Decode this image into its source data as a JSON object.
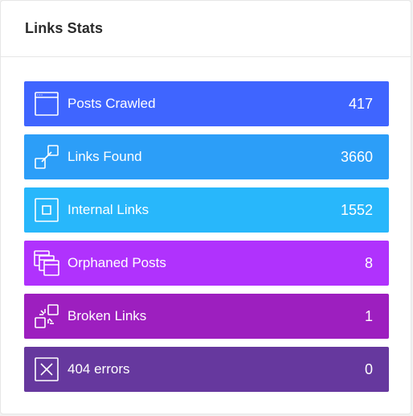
{
  "card": {
    "title": "Links Stats"
  },
  "stats": [
    {
      "label": "Posts Crawled",
      "value": "417",
      "icon": "browser-window-icon",
      "color": "#3f65ff"
    },
    {
      "label": "Links Found",
      "value": "3660",
      "icon": "link-chain-icon",
      "color": "#2c9ef8"
    },
    {
      "label": "Internal Links",
      "value": "1552",
      "icon": "square-in-square-icon",
      "color": "#28b7fb"
    },
    {
      "label": "Orphaned Posts",
      "value": "8",
      "icon": "stacked-windows-icon",
      "color": "#b032fd"
    },
    {
      "label": "Broken Links",
      "value": "1",
      "icon": "broken-link-icon",
      "color": "#9d1fbf"
    },
    {
      "label": "404 errors",
      "value": "0",
      "icon": "x-box-icon",
      "color": "#66389e"
    }
  ]
}
